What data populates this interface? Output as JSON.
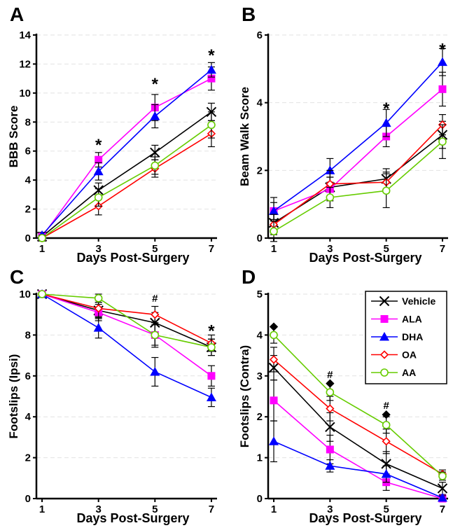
{
  "chart_data": [
    {
      "panel": "A",
      "type": "line",
      "xlabel": "Days Post-Surgery",
      "ylabel": "BBB Score",
      "x": [
        1,
        3,
        5,
        7
      ],
      "xticks": [
        1,
        3,
        5,
        7
      ],
      "ylim": [
        0,
        14
      ],
      "yticks": [
        0,
        2,
        4,
        6,
        8,
        10,
        12,
        14
      ],
      "series": [
        {
          "name": "Vehicle",
          "values": [
            0.1,
            3.3,
            5.9,
            8.7
          ],
          "errors": [
            0.2,
            0.5,
            0.5,
            0.6
          ]
        },
        {
          "name": "ALA",
          "values": [
            0.1,
            5.4,
            9.0,
            11.0
          ],
          "errors": [
            0.2,
            0.5,
            0.9,
            0.8
          ]
        },
        {
          "name": "DHA",
          "values": [
            0.2,
            4.6,
            8.4,
            11.6
          ],
          "errors": [
            0.2,
            0.6,
            0.8,
            0.5
          ]
        },
        {
          "name": "OA",
          "values": [
            0.0,
            2.2,
            4.8,
            7.2
          ],
          "errors": [
            0.2,
            0.6,
            0.6,
            0.9
          ]
        },
        {
          "name": "AA",
          "values": [
            0.0,
            2.8,
            5.0,
            7.8
          ],
          "errors": [
            0.2,
            0.6,
            0.6,
            0.9
          ]
        }
      ],
      "annotations": [
        {
          "x": 3,
          "y": 6.7,
          "text": "*"
        },
        {
          "x": 5,
          "y": 10.9,
          "text": "*"
        },
        {
          "x": 7,
          "y": 12.9,
          "text": "*"
        }
      ]
    },
    {
      "panel": "B",
      "type": "line",
      "xlabel": "Days Post-Surgery",
      "ylabel": "Beam Walk Score",
      "x": [
        1,
        3,
        5,
        7
      ],
      "xticks": [
        1,
        3,
        5,
        7
      ],
      "ylim": [
        0,
        6
      ],
      "yticks": [
        0,
        2,
        4,
        6
      ],
      "series": [
        {
          "name": "Vehicle",
          "values": [
            0.45,
            1.5,
            1.75,
            3.05
          ],
          "errors": [
            0.3,
            0.3,
            0.3,
            0.4
          ]
        },
        {
          "name": "ALA",
          "values": [
            0.8,
            1.45,
            3.0,
            4.4
          ],
          "errors": [
            0.25,
            0.35,
            0.3,
            0.5
          ]
        },
        {
          "name": "DHA",
          "values": [
            0.8,
            2.0,
            3.4,
            5.2
          ],
          "errors": [
            0.4,
            0.35,
            0.4,
            0.4
          ]
        },
        {
          "name": "OA",
          "values": [
            0.4,
            1.6,
            1.65,
            3.35
          ],
          "errors": [
            0.3,
            0.4,
            0.3,
            0.3
          ]
        },
        {
          "name": "AA",
          "values": [
            0.2,
            1.2,
            1.4,
            2.85
          ],
          "errors": [
            0.3,
            0.3,
            0.5,
            0.5
          ]
        }
      ],
      "annotations": [
        {
          "x": 5,
          "y": 3.95,
          "text": "*"
        },
        {
          "x": 7,
          "y": 5.7,
          "text": "*"
        }
      ]
    },
    {
      "panel": "C",
      "type": "line",
      "xlabel": "Days Post-Surgery",
      "ylabel": "Footslips (Ipsi)",
      "x": [
        1,
        3,
        5,
        7
      ],
      "xticks": [
        1,
        3,
        5,
        7
      ],
      "ylim": [
        0,
        10
      ],
      "yticks": [
        0,
        2,
        4,
        6,
        8,
        10
      ],
      "series": [
        {
          "name": "Vehicle",
          "values": [
            10,
            9.2,
            8.6,
            7.4
          ],
          "errors": [
            0,
            0.4,
            0.5,
            0.4
          ]
        },
        {
          "name": "ALA",
          "values": [
            10,
            9.1,
            8.0,
            6.0
          ],
          "errors": [
            0,
            0.4,
            0.5,
            0.5
          ]
        },
        {
          "name": "DHA",
          "values": [
            10,
            8.35,
            6.2,
            4.95
          ],
          "errors": [
            0,
            0.5,
            0.7,
            0.45
          ]
        },
        {
          "name": "OA",
          "values": [
            10,
            9.3,
            9.0,
            7.6
          ],
          "errors": [
            0,
            0.4,
            0.4,
            0.4
          ]
        },
        {
          "name": "AA",
          "values": [
            10,
            9.8,
            8.0,
            7.4
          ],
          "errors": [
            0,
            0.2,
            0.6,
            0.4
          ]
        }
      ],
      "annotations": [
        {
          "x": 5,
          "y": 9.8,
          "text": "#"
        },
        {
          "x": 7,
          "y": 8.4,
          "text": "*"
        }
      ]
    },
    {
      "panel": "D",
      "type": "line",
      "xlabel": "Days Post-Surgery",
      "ylabel": "Footslips (Contra)",
      "x": [
        1,
        3,
        5,
        7
      ],
      "xticks": [
        1,
        3,
        5,
        7
      ],
      "ylim": [
        0,
        5
      ],
      "yticks": [
        0,
        1,
        2,
        3,
        4,
        5
      ],
      "legend_position": "top-right",
      "series": [
        {
          "name": "Vehicle",
          "values": [
            3.2,
            1.75,
            0.85,
            0.25
          ],
          "errors": [
            0.3,
            0.35,
            0.3,
            0.15
          ]
        },
        {
          "name": "ALA",
          "values": [
            2.4,
            1.2,
            0.4,
            0.0
          ],
          "errors": [
            0.5,
            0.35,
            0.2,
            0.05
          ]
        },
        {
          "name": "DHA",
          "values": [
            1.4,
            0.8,
            0.6,
            0.02
          ],
          "errors": [
            0.5,
            0.15,
            0.2,
            0.05
          ]
        },
        {
          "name": "OA",
          "values": [
            3.4,
            2.2,
            1.4,
            0.6
          ],
          "errors": [
            0.3,
            0.3,
            0.3,
            0.1
          ]
        },
        {
          "name": "AA",
          "values": [
            4.0,
            2.6,
            1.8,
            0.55
          ],
          "errors": [
            0.2,
            0.2,
            0.2,
            0.1
          ]
        }
      ],
      "annotations": [
        {
          "x": 1,
          "y": 4.22,
          "text": "◆"
        },
        {
          "x": 3,
          "y": 3.03,
          "text": "#"
        },
        {
          "x": 3,
          "y": 2.83,
          "text": "◆"
        },
        {
          "x": 5,
          "y": 2.28,
          "text": "#"
        },
        {
          "x": 5,
          "y": 2.07,
          "text": "◆"
        }
      ]
    }
  ],
  "styles": {
    "Vehicle": {
      "color": "#000000",
      "marker": "x"
    },
    "ALA": {
      "color": "#ff00ff",
      "marker": "square"
    },
    "DHA": {
      "color": "#0000ff",
      "marker": "triangle"
    },
    "OA": {
      "color": "#ff0000",
      "marker": "diamond-open"
    },
    "AA": {
      "color": "#66cc00",
      "marker": "circle-open"
    }
  }
}
